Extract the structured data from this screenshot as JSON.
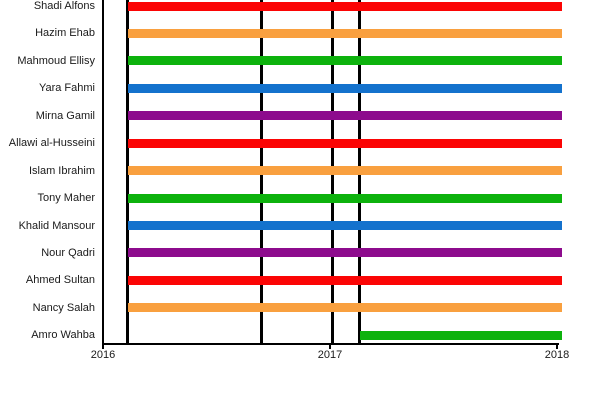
{
  "chart_data": {
    "type": "bar",
    "subtype": "gantt-timeline",
    "title": "",
    "xlabel": "",
    "ylabel": "",
    "legend": null,
    "grid": false,
    "x_axis": {
      "range": [
        2016,
        2018.05
      ],
      "ticks": [
        2016,
        2017,
        2018
      ],
      "tick_labels": [
        "2016",
        "2017",
        "2018"
      ]
    },
    "categories": [
      "Shadi Alfons",
      "Hazim Ehab",
      "Mahmoud Ellisy",
      "Yara Fahmi",
      "Mirna Gamil",
      "Allawi al-Husseini",
      "Islam Ibrahim",
      "Tony Maher",
      "Khalid Mansour",
      "Nour Qadri",
      "Ahmed Sultan",
      "Nancy Salah",
      "Amro Wahba"
    ],
    "rows": [
      {
        "label": "Shadi Alfons",
        "start": 2016.11,
        "end": 2018.02,
        "color": "#fb0505"
      },
      {
        "label": "Hazim Ehab",
        "start": 2016.11,
        "end": 2018.02,
        "color": "#f9a03f"
      },
      {
        "label": "Mahmoud Ellisy",
        "start": 2016.11,
        "end": 2018.02,
        "color": "#0db20d"
      },
      {
        "label": "Yara Fahmi",
        "start": 2016.11,
        "end": 2018.02,
        "color": "#1472cd"
      },
      {
        "label": "Mirna Gamil",
        "start": 2016.11,
        "end": 2018.02,
        "color": "#8d0b8d"
      },
      {
        "label": "Allawi al-Husseini",
        "start": 2016.11,
        "end": 2018.02,
        "color": "#fb0505"
      },
      {
        "label": "Islam Ibrahim",
        "start": 2016.11,
        "end": 2018.02,
        "color": "#f9a03f"
      },
      {
        "label": "Tony Maher",
        "start": 2016.11,
        "end": 2018.02,
        "color": "#0db20d"
      },
      {
        "label": "Khalid Mansour",
        "start": 2016.11,
        "end": 2018.02,
        "color": "#1472cd"
      },
      {
        "label": "Nour Qadri",
        "start": 2016.11,
        "end": 2018.02,
        "color": "#8d0b8d"
      },
      {
        "label": "Ahmed Sultan",
        "start": 2016.11,
        "end": 2018.02,
        "color": "#fb0505"
      },
      {
        "label": "Nancy Salah",
        "start": 2016.11,
        "end": 2018.02,
        "color": "#f9a03f"
      },
      {
        "label": "Amro Wahba",
        "start": 2017.13,
        "end": 2018.02,
        "color": "#0db20d"
      }
    ],
    "vlines": [
      2016.11,
      2016.7,
      2017.01,
      2017.13
    ],
    "colors": {
      "red": "#fb0505",
      "orange": "#f9a03f",
      "green": "#0db20d",
      "blue": "#1472cd",
      "purple": "#8d0b8d",
      "axis": "#000000",
      "marker_line": "#000000",
      "background": "#ffffff"
    }
  }
}
